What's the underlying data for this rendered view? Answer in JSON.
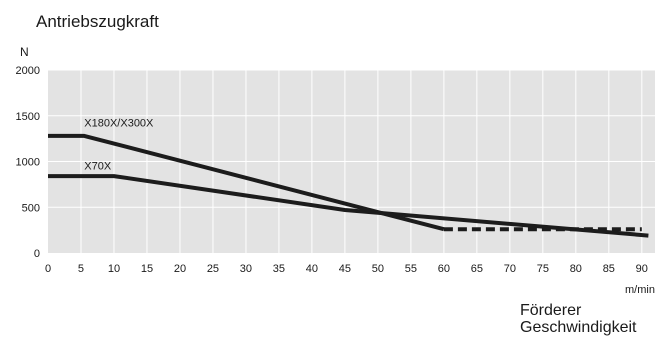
{
  "chart_data": {
    "type": "line",
    "title": "Antriebszugkraft",
    "ylabel": "N",
    "xlabel_unit": "m/min",
    "xlabel_caption": [
      "Förderer",
      "Geschwindigkeit"
    ],
    "xlim": [
      0,
      92
    ],
    "ylim": [
      0,
      2000
    ],
    "x_ticks": [
      0,
      5,
      10,
      15,
      20,
      25,
      30,
      35,
      40,
      45,
      50,
      55,
      60,
      65,
      70,
      75,
      80,
      85,
      90
    ],
    "y_ticks": [
      0,
      500,
      1000,
      1500,
      2000
    ],
    "grid": true,
    "series": [
      {
        "name": "X180X/X300X",
        "x": [
          0,
          5.5,
          60
        ],
        "y": [
          1280,
          1280,
          260
        ],
        "dashed_extension": {
          "x": [
            60,
            90
          ],
          "y": [
            260,
            260
          ]
        }
      },
      {
        "name": "X70X",
        "x": [
          0,
          10,
          45,
          91
        ],
        "y": [
          840,
          840,
          470,
          190
        ]
      }
    ],
    "colors": {
      "plot_bg": "#e3e3e3",
      "grid": "#ffffff",
      "line": "#1c1c1c"
    }
  }
}
